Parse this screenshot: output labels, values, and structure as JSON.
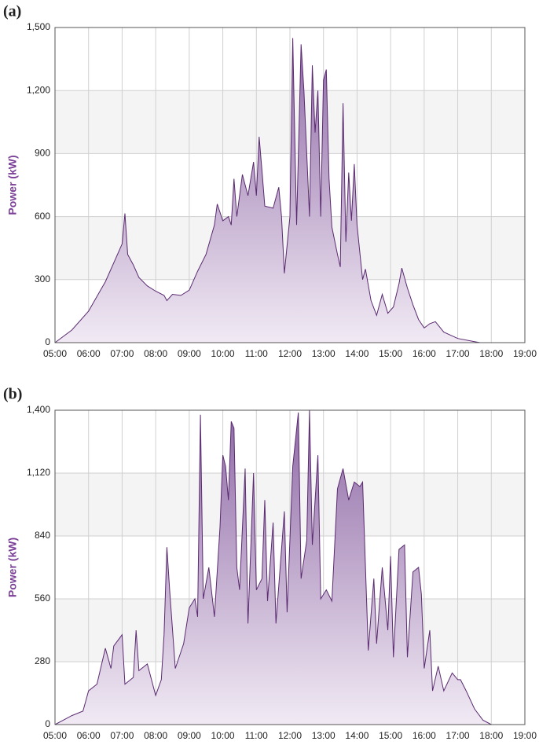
{
  "chart_data": [
    {
      "type": "area",
      "label": "(a)",
      "ylabel": "Power (kW)",
      "color": "#5a2a70",
      "grid": true,
      "x": [
        "05:00",
        "05:30",
        "06:00",
        "06:30",
        "06:45",
        "07:00",
        "07:05",
        "07:10",
        "07:20",
        "07:30",
        "07:45",
        "08:00",
        "08:15",
        "08:20",
        "08:30",
        "08:45",
        "09:00",
        "09:15",
        "09:30",
        "09:45",
        "09:50",
        "10:00",
        "10:10",
        "10:15",
        "10:20",
        "10:25",
        "10:35",
        "10:45",
        "10:55",
        "11:00",
        "11:05",
        "11:10",
        "11:15",
        "11:30",
        "11:40",
        "11:45",
        "11:50",
        "12:00",
        "12:05",
        "12:12",
        "12:20",
        "12:25",
        "12:30",
        "12:35",
        "12:40",
        "12:45",
        "12:50",
        "12:55",
        "13:00",
        "13:05",
        "13:10",
        "13:15",
        "13:25",
        "13:30",
        "13:35",
        "13:40",
        "13:45",
        "13:50",
        "13:55",
        "14:00",
        "14:10",
        "14:15",
        "14:25",
        "14:35",
        "14:45",
        "14:55",
        "15:05",
        "15:15",
        "15:20",
        "15:30",
        "15:40",
        "15:50",
        "16:00",
        "16:10",
        "16:20",
        "16:35",
        "17:00",
        "17:30",
        "17:40"
      ],
      "values": [
        0,
        60,
        150,
        290,
        380,
        470,
        615,
        420,
        370,
        310,
        270,
        245,
        225,
        200,
        230,
        225,
        250,
        340,
        420,
        560,
        660,
        580,
        600,
        560,
        780,
        600,
        800,
        700,
        860,
        700,
        980,
        820,
        650,
        640,
        740,
        600,
        330,
        600,
        1450,
        560,
        1420,
        1200,
        900,
        600,
        1320,
        1000,
        1200,
        600,
        1250,
        1300,
        780,
        550,
        420,
        360,
        1140,
        480,
        810,
        580,
        850,
        560,
        300,
        350,
        200,
        130,
        230,
        140,
        170,
        280,
        355,
        260,
        180,
        110,
        70,
        90,
        100,
        50,
        20,
        5,
        0
      ],
      "xlim": [
        "05:00",
        "19:00"
      ],
      "xticks": [
        "05:00",
        "06:00",
        "07:00",
        "08:00",
        "09:00",
        "10:00",
        "11:00",
        "12:00",
        "13:00",
        "14:00",
        "15:00",
        "16:00",
        "17:00",
        "18:00",
        "19:00"
      ],
      "ylim": [
        0,
        1500
      ],
      "yticks": [
        0,
        300,
        600,
        900,
        {
          "value": 1200,
          "label": "1,200"
        },
        {
          "value": 1500,
          "label": "1,500"
        }
      ]
    },
    {
      "type": "area",
      "label": "(b)",
      "ylabel": "Power (kW)",
      "color": "#5a2a70",
      "grid": true,
      "x": [
        "05:00",
        "05:15",
        "05:30",
        "05:50",
        "06:00",
        "06:15",
        "06:30",
        "06:40",
        "06:45",
        "07:00",
        "07:05",
        "07:20",
        "07:25",
        "07:30",
        "07:45",
        "08:00",
        "08:10",
        "08:15",
        "08:20",
        "08:25",
        "08:35",
        "08:50",
        "09:00",
        "09:10",
        "09:15",
        "09:20",
        "09:25",
        "09:35",
        "09:45",
        "09:55",
        "10:00",
        "10:05",
        "10:10",
        "10:15",
        "10:20",
        "10:25",
        "10:30",
        "10:40",
        "10:45",
        "10:55",
        "11:00",
        "11:10",
        "11:15",
        "11:20",
        "11:30",
        "11:35",
        "11:50",
        "11:55",
        "12:05",
        "12:15",
        "12:20",
        "12:30",
        "12:35",
        "12:40",
        "12:50",
        "12:55",
        "13:05",
        "13:15",
        "13:25",
        "13:35",
        "13:45",
        "13:55",
        "14:05",
        "14:10",
        "14:20",
        "14:30",
        "14:35",
        "14:45",
        "14:55",
        "15:00",
        "15:05",
        "15:15",
        "15:25",
        "15:30",
        "15:40",
        "15:50",
        "15:55",
        "16:00",
        "16:10",
        "16:15",
        "16:25",
        "16:35",
        "16:50",
        "17:00",
        "17:05",
        "17:15",
        "17:30",
        "17:45",
        "18:00"
      ],
      "values": [
        0,
        20,
        40,
        60,
        150,
        180,
        340,
        250,
        350,
        400,
        180,
        210,
        420,
        240,
        270,
        130,
        200,
        400,
        790,
        600,
        250,
        360,
        520,
        560,
        480,
        1380,
        560,
        700,
        480,
        880,
        1200,
        1150,
        1000,
        1350,
        1320,
        700,
        600,
        1140,
        450,
        1120,
        600,
        650,
        1000,
        550,
        900,
        450,
        950,
        500,
        1150,
        1390,
        650,
        820,
        1400,
        800,
        1200,
        560,
        600,
        550,
        1050,
        1140,
        1000,
        1080,
        1060,
        1080,
        330,
        650,
        360,
        700,
        420,
        750,
        300,
        780,
        800,
        300,
        680,
        700,
        580,
        250,
        420,
        150,
        260,
        150,
        230,
        200,
        200,
        150,
        70,
        20,
        0
      ],
      "xlim": [
        "05:00",
        "19:00"
      ],
      "xticks": [
        "05:00",
        "06:00",
        "07:00",
        "08:00",
        "09:00",
        "10:00",
        "11:00",
        "12:00",
        "13:00",
        "14:00",
        "15:00",
        "16:00",
        "17:00",
        "18:00",
        "19:00"
      ],
      "ylim": [
        0,
        1400
      ],
      "yticks": [
        0,
        280,
        560,
        840,
        {
          "value": 1120,
          "label": "1,120"
        },
        {
          "value": 1400,
          "label": "1,400"
        }
      ]
    }
  ]
}
